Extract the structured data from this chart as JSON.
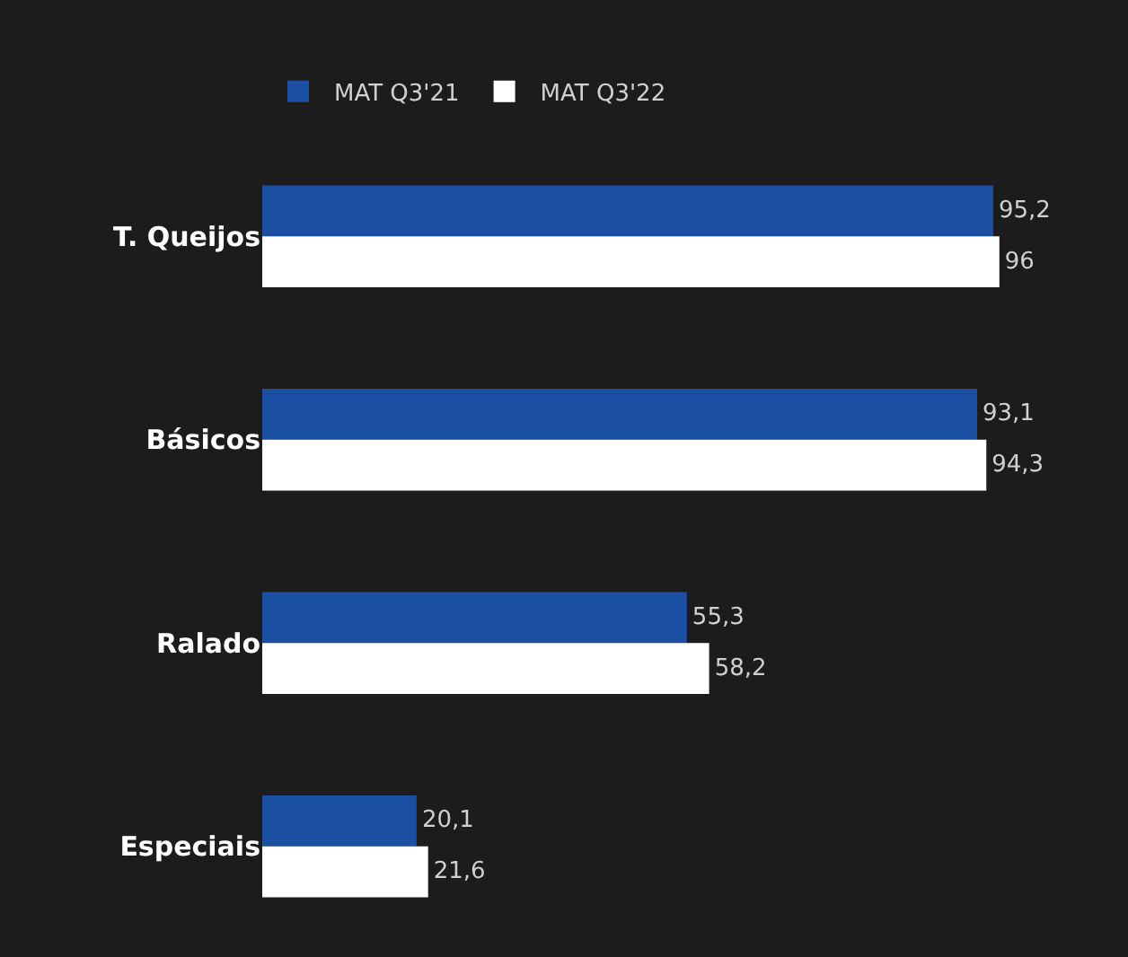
{
  "chart_data": {
    "type": "bar",
    "orientation": "horizontal",
    "categories": [
      "T. Queijos",
      "Básicos",
      "Ralado",
      "Especiais"
    ],
    "series": [
      {
        "name": "MAT Q3'21",
        "color": "#1a4fa3",
        "values": [
          95.2,
          93.1,
          55.3,
          20.1
        ],
        "value_labels": [
          "95,2",
          "93,1",
          "55,3",
          "20,1"
        ]
      },
      {
        "name": "MAT Q3'22",
        "color": "#ffffff",
        "values": [
          96,
          94.3,
          58.2,
          21.6
        ],
        "value_labels": [
          "96",
          "94,3",
          "58,2",
          "21,6"
        ]
      }
    ],
    "legend": "top",
    "tick_labels": "y"
  }
}
